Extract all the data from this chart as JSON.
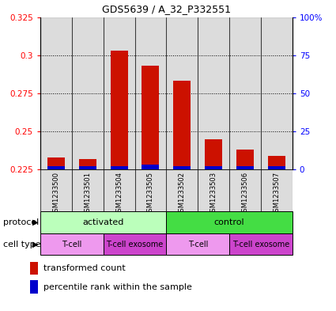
{
  "title": "GDS5639 / A_32_P332551",
  "samples": [
    "GSM1233500",
    "GSM1233501",
    "GSM1233504",
    "GSM1233505",
    "GSM1233502",
    "GSM1233503",
    "GSM1233506",
    "GSM1233507"
  ],
  "red_values": [
    0.233,
    0.232,
    0.303,
    0.293,
    0.283,
    0.245,
    0.238,
    0.234
  ],
  "blue_percentiles": [
    2,
    2,
    2,
    3,
    2,
    2,
    2,
    2
  ],
  "ylim_left": [
    0.225,
    0.325
  ],
  "ylim_right": [
    0,
    100
  ],
  "yticks_left": [
    0.225,
    0.25,
    0.275,
    0.3,
    0.325
  ],
  "yticks_right": [
    0,
    25,
    50,
    75,
    100
  ],
  "ytick_labels_left": [
    "0.225",
    "0.25",
    "0.275",
    "0.3",
    "0.325"
  ],
  "ytick_labels_right": [
    "0",
    "25",
    "50",
    "75",
    "100%"
  ],
  "protocol_groups": [
    {
      "label": "activated",
      "start": 0,
      "end": 4,
      "color": "#bbffbb"
    },
    {
      "label": "control",
      "start": 4,
      "end": 8,
      "color": "#44dd44"
    }
  ],
  "cell_type_groups": [
    {
      "label": "T-cell",
      "start": 0,
      "end": 2,
      "color": "#ee99ee"
    },
    {
      "label": "T-cell exosome",
      "start": 2,
      "end": 4,
      "color": "#cc44cc"
    },
    {
      "label": "T-cell",
      "start": 4,
      "end": 6,
      "color": "#ee99ee"
    },
    {
      "label": "T-cell exosome",
      "start": 6,
      "end": 8,
      "color": "#cc44cc"
    }
  ],
  "bar_width": 0.55,
  "red_color": "#cc1100",
  "blue_color": "#0000cc",
  "sample_bg_color": "#bbbbbb",
  "legend_red_label": "transformed count",
  "legend_blue_label": "percentile rank within the sample",
  "protocol_label": "protocol",
  "cell_type_label": "cell type"
}
